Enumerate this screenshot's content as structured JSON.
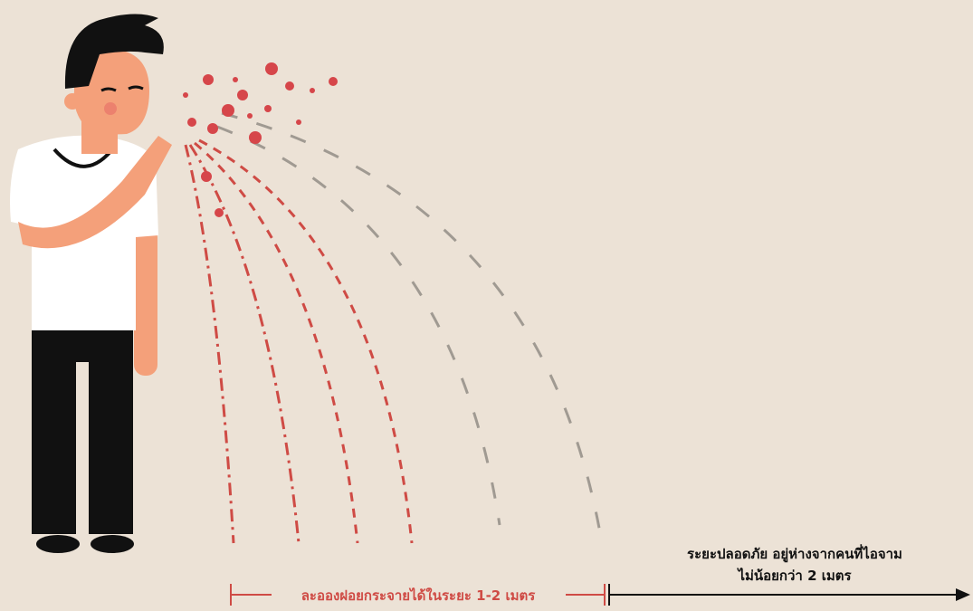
{
  "droplet_range": "ละอองฝอยกระจายได้ในระยะ 1-2 เมตร",
  "safe_distance": {
    "line1": "ระยะปลอดภัย อยู่ห่างจากคนที่ไอจาม",
    "line2": "ไม่น้อยกว่า 2 เมตร"
  }
}
